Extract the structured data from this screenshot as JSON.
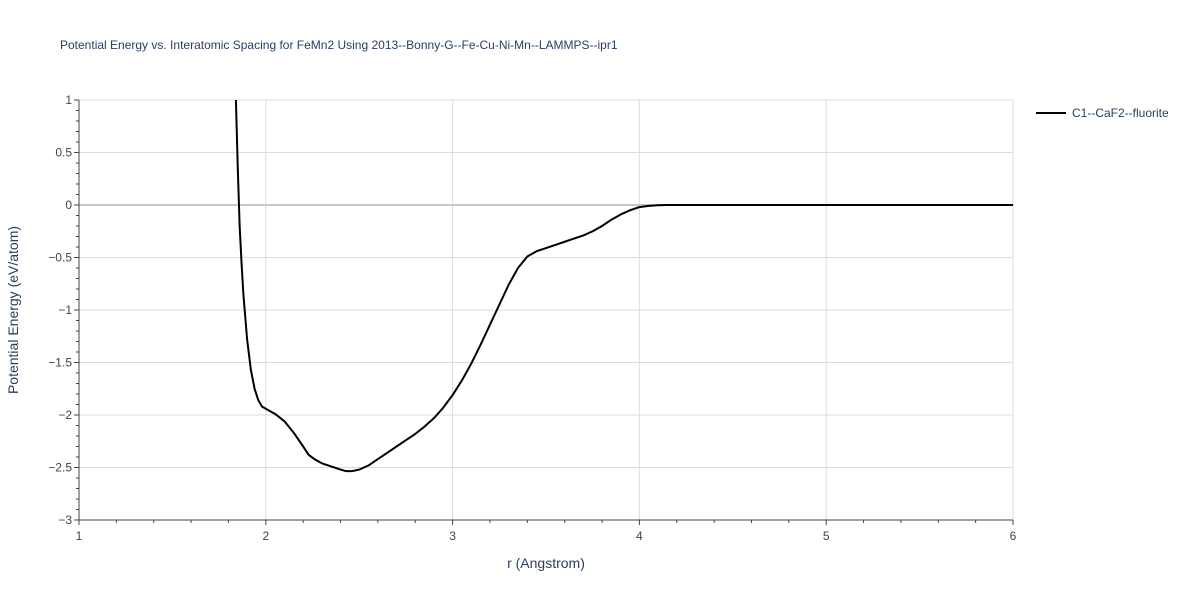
{
  "chart_data": {
    "type": "line",
    "title": "Potential Energy vs. Interatomic Spacing for FeMn2 Using 2013--Bonny-G--Fe-Cu-Ni-Mn--LAMMPS--ipr1",
    "xlabel": "r (Angstrom)",
    "ylabel": "Potential Energy (eV/atom)",
    "xlim": [
      1,
      6
    ],
    "ylim": [
      -3,
      1
    ],
    "xticks": [
      1,
      2,
      3,
      4,
      5,
      6
    ],
    "xtick_labels": [
      "1",
      "2",
      "3",
      "4",
      "5",
      "6"
    ],
    "yticks": [
      1,
      0.5,
      0,
      -0.5,
      -1,
      -1.5,
      -2,
      -2.5,
      -3
    ],
    "ytick_labels": [
      "1",
      "0.5",
      "0",
      "−0.5",
      "−1",
      "−1.5",
      "−2",
      "−2.5",
      "−3"
    ],
    "grid": true,
    "legend_position": "top-right",
    "series": [
      {
        "name": "C1--CaF2--fluorite",
        "color": "#000000",
        "x": [
          1.84,
          1.85,
          1.86,
          1.87,
          1.88,
          1.9,
          1.92,
          1.94,
          1.96,
          1.98,
          2.0,
          2.05,
          2.1,
          2.15,
          2.2,
          2.23,
          2.26,
          2.3,
          2.35,
          2.4,
          2.43,
          2.46,
          2.5,
          2.55,
          2.6,
          2.65,
          2.7,
          2.75,
          2.8,
          2.85,
          2.9,
          2.95,
          3.0,
          3.05,
          3.1,
          3.15,
          3.2,
          3.25,
          3.3,
          3.35,
          3.4,
          3.45,
          3.5,
          3.55,
          3.6,
          3.65,
          3.7,
          3.75,
          3.8,
          3.85,
          3.9,
          3.95,
          4.0,
          4.05,
          4.1,
          4.15,
          4.3,
          4.5,
          5.0,
          5.5,
          6.0
        ],
        "y": [
          1.0,
          0.35,
          -0.2,
          -0.55,
          -0.85,
          -1.28,
          -1.57,
          -1.75,
          -1.86,
          -1.92,
          -1.94,
          -1.99,
          -2.06,
          -2.17,
          -2.3,
          -2.38,
          -2.42,
          -2.46,
          -2.49,
          -2.52,
          -2.535,
          -2.535,
          -2.52,
          -2.48,
          -2.42,
          -2.36,
          -2.3,
          -2.24,
          -2.18,
          -2.11,
          -2.03,
          -1.93,
          -1.81,
          -1.67,
          -1.51,
          -1.33,
          -1.14,
          -0.95,
          -0.76,
          -0.6,
          -0.49,
          -0.44,
          -0.41,
          -0.38,
          -0.35,
          -0.32,
          -0.29,
          -0.25,
          -0.2,
          -0.14,
          -0.09,
          -0.05,
          -0.02,
          -0.008,
          -0.002,
          0.0,
          0.0,
          0.0,
          0.0,
          0.0,
          0.0
        ]
      }
    ]
  }
}
